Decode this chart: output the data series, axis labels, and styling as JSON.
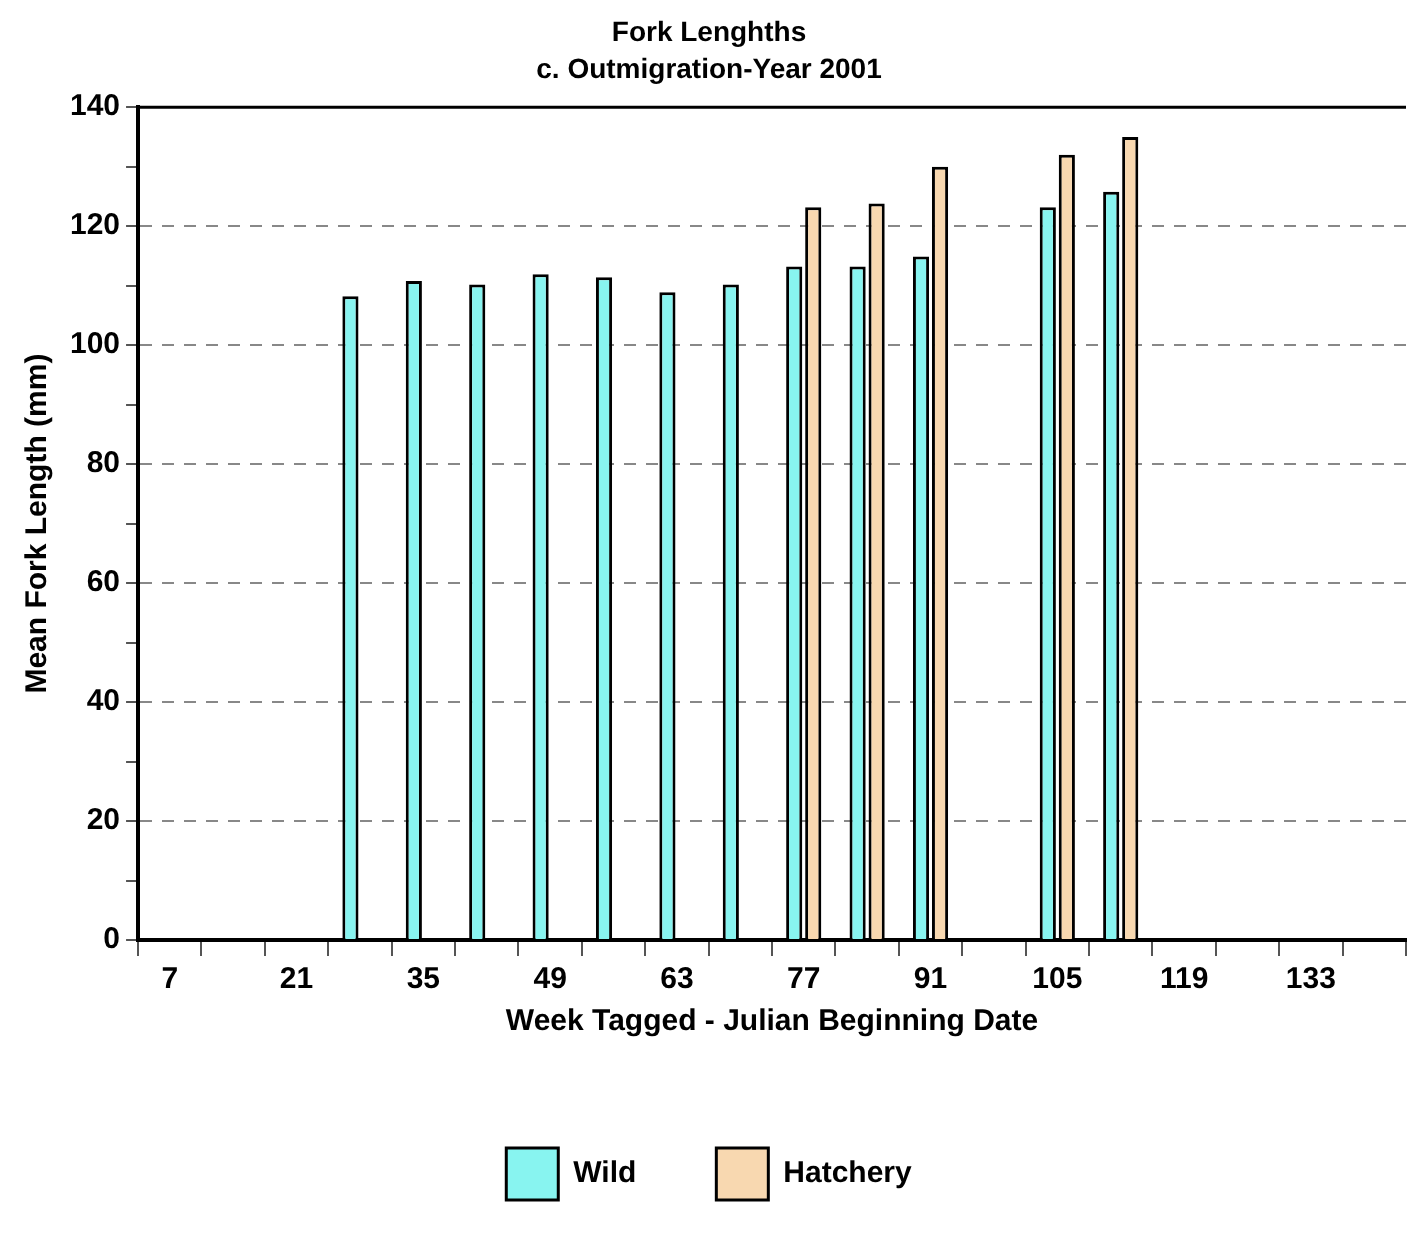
{
  "chart_data": {
    "type": "bar",
    "title": "Fork Lenghths",
    "subtitle": "c. Outmigration-Year 2001",
    "xlabel": "Week Tagged - Julian Beginning Date",
    "ylabel": "Mean Fork Length (mm)",
    "categories": [
      "7",
      null,
      "21",
      null,
      "35",
      null,
      "49",
      null,
      "63",
      null,
      "77",
      null,
      "91",
      null,
      "105",
      null,
      "119",
      null,
      "133",
      null
    ],
    "series": [
      {
        "name": "Wild",
        "color": "#88f4f0",
        "values": [
          null,
          null,
          null,
          108.2,
          110.8,
          110.2,
          111.9,
          111.4,
          108.9,
          110.2,
          113.2,
          113.2,
          114.9,
          null,
          123.2,
          125.8,
          null,
          null,
          null,
          null
        ]
      },
      {
        "name": "Hatchery",
        "color": "#f8d8b0",
        "values": [
          null,
          null,
          null,
          null,
          null,
          null,
          null,
          null,
          null,
          null,
          123.2,
          123.8,
          130.0,
          null,
          132.0,
          135.0,
          null,
          null,
          null,
          null
        ]
      }
    ],
    "ylim": [
      0,
      140
    ],
    "yticks": [
      0,
      {
        "value": 10,
        "label": null
      },
      20,
      {
        "value": 30,
        "label": null
      },
      40,
      {
        "value": 50,
        "label": null
      },
      60,
      {
        "value": 70,
        "label": null
      },
      80,
      {
        "value": 90,
        "label": null
      },
      100,
      {
        "value": 110,
        "label": null
      },
      120,
      {
        "value": 130,
        "label": null
      },
      140
    ],
    "grid": "y",
    "legend": "bottom"
  }
}
